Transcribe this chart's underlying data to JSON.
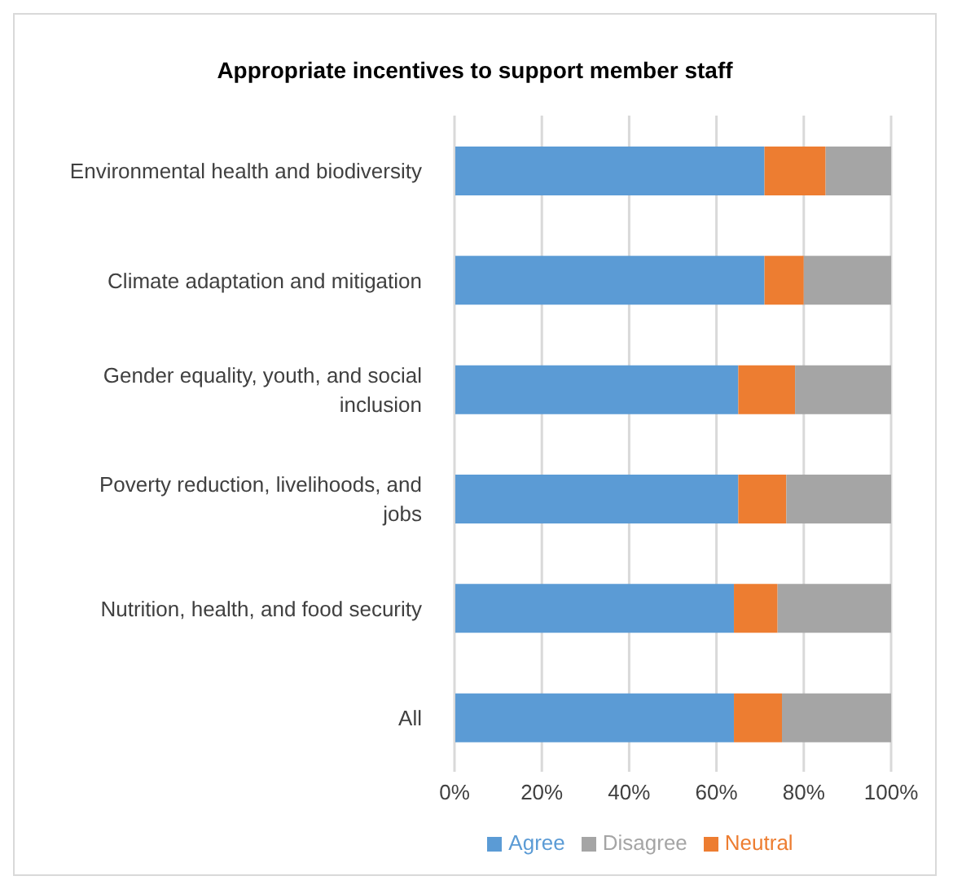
{
  "chart_data": {
    "type": "bar",
    "orientation": "horizontal",
    "stacked": true,
    "title": "Appropriate incentives to support member staff",
    "categories": [
      "Environmental health and biodiversity",
      "Climate adaptation and mitigation",
      "Gender equality, youth, and social inclusion",
      "Poverty reduction, livelihoods, and jobs",
      "Nutrition, health, and food security",
      "All"
    ],
    "series": [
      {
        "name": "Agree",
        "color": "#5b9bd5",
        "values": [
          71,
          71,
          65,
          65,
          64,
          64
        ]
      },
      {
        "name": "Neutral",
        "color": "#ed7d31",
        "values": [
          14,
          9,
          13,
          11,
          10,
          11
        ]
      },
      {
        "name": "Disagree",
        "color": "#a5a5a5",
        "values": [
          15,
          20,
          22,
          24,
          26,
          25
        ]
      }
    ],
    "xlim": [
      0,
      100
    ],
    "xticks": [
      {
        "value": 0,
        "label": "0%"
      },
      {
        "value": 20,
        "label": "20%"
      },
      {
        "value": 40,
        "label": "40%"
      },
      {
        "value": 60,
        "label": "60%"
      },
      {
        "value": 80,
        "label": "80%"
      },
      {
        "value": 100,
        "label": "100%"
      }
    ],
    "grid": "x",
    "legend": "bottom"
  }
}
